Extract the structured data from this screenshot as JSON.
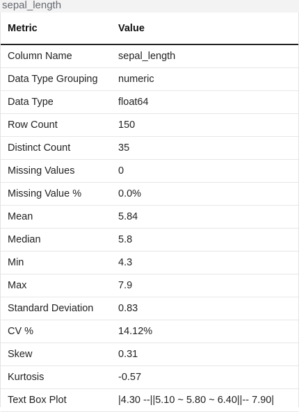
{
  "title": "sepal_length",
  "table": {
    "headers": [
      "Metric",
      "Value"
    ],
    "rows": [
      {
        "metric": "Column Name",
        "value": "sepal_length"
      },
      {
        "metric": "Data Type Grouping",
        "value": "numeric"
      },
      {
        "metric": "Data Type",
        "value": "float64"
      },
      {
        "metric": "Row Count",
        "value": "150"
      },
      {
        "metric": "Distinct Count",
        "value": "35"
      },
      {
        "metric": "Missing Values",
        "value": "0"
      },
      {
        "metric": "Missing Value %",
        "value": "0.0%"
      },
      {
        "metric": "Mean",
        "value": "5.84"
      },
      {
        "metric": "Median",
        "value": "5.8"
      },
      {
        "metric": "Min",
        "value": "4.3"
      },
      {
        "metric": "Max",
        "value": "7.9"
      },
      {
        "metric": "Standard Deviation",
        "value": "0.83"
      },
      {
        "metric": "CV %",
        "value": "14.12%"
      },
      {
        "metric": "Skew",
        "value": "0.31"
      },
      {
        "metric": "Kurtosis",
        "value": "-0.57"
      },
      {
        "metric": "Text Box Plot",
        "value": "|4.30 --||5.10 ~ 5.80 ~ 6.40||-- 7.90|"
      }
    ]
  }
}
